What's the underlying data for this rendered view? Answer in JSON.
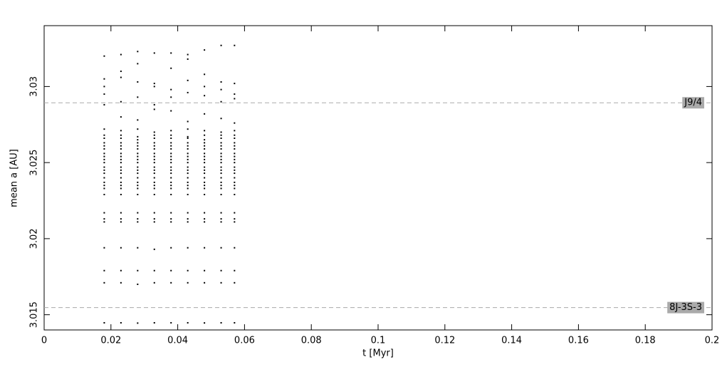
{
  "chart_data": {
    "type": "scatter",
    "x_label": "t [Myr]",
    "y_label": "mean a [AU]",
    "xlim": [
      0,
      0.2
    ],
    "xticks": [
      0,
      0.02,
      0.04,
      0.06,
      0.08,
      0.1,
      0.12,
      0.14,
      0.16,
      0.18,
      0.2
    ],
    "ylim": [
      3.014,
      3.034
    ],
    "yticks": [
      3.015,
      3.02,
      3.025,
      3.03
    ],
    "color": "#000000",
    "reference_lines": [
      {
        "value": 3.02893,
        "label": "J9/4"
      },
      {
        "value": 3.01547,
        "label": "8J-3S-3"
      }
    ],
    "x": [
      0.018,
      0.023,
      0.028,
      0.033,
      0.038,
      0.043,
      0.048,
      0.053,
      0.057
    ],
    "series": [
      {
        "values": [
          3.032,
          3.0321,
          3.0323,
          3.0322,
          3.0322,
          3.0321,
          3.0324,
          3.0327,
          3.0327
        ]
      },
      {
        "values": [
          3.0305,
          3.0306,
          3.0303,
          3.0302,
          3.0298,
          3.0304,
          3.03,
          3.0303,
          3.0302
        ]
      },
      {
        "values": [
          3.03,
          3.031,
          3.0315,
          3.03,
          3.0312,
          3.0318,
          3.0308,
          3.0298,
          3.0295
        ]
      },
      {
        "values": [
          3.0295,
          3.029,
          3.0293,
          3.0285,
          3.0293,
          3.0296,
          3.0294,
          3.029,
          3.0292
        ]
      },
      {
        "values": [
          3.0288,
          3.028,
          3.0278,
          3.0288,
          3.0284,
          3.0277,
          3.0282,
          3.0279,
          3.0276
        ]
      },
      {
        "values": [
          3.0272,
          3.0271,
          3.0272,
          3.027,
          3.0271,
          3.0272,
          3.0271,
          3.027,
          3.0271
        ]
      },
      {
        "values": [
          3.0268,
          3.0268,
          3.0267,
          3.0268,
          3.0268,
          3.0267,
          3.0268,
          3.0268,
          3.0268
        ]
      },
      {
        "values": [
          3.0266,
          3.0266,
          3.0265,
          3.0266,
          3.0266,
          3.0266,
          3.0265,
          3.0266,
          3.0266
        ]
      },
      {
        "values": [
          3.0263,
          3.0263,
          3.0263,
          3.0263,
          3.0263,
          3.0263,
          3.0263,
          3.0263,
          3.0263
        ]
      },
      {
        "values": [
          3.0261,
          3.0261,
          3.0261,
          3.0261,
          3.0261,
          3.0261,
          3.0261,
          3.0261,
          3.0261
        ]
      },
      {
        "values": [
          3.0259,
          3.0259,
          3.0259,
          3.0259,
          3.0259,
          3.0259,
          3.0259,
          3.0259,
          3.0259
        ]
      },
      {
        "values": [
          3.0256,
          3.0256,
          3.0256,
          3.0256,
          3.0256,
          3.0256,
          3.0256,
          3.0256,
          3.0256
        ]
      },
      {
        "values": [
          3.0254,
          3.0254,
          3.0254,
          3.0254,
          3.0254,
          3.0254,
          3.0254,
          3.0254,
          3.0254
        ]
      },
      {
        "values": [
          3.0252,
          3.0252,
          3.0252,
          3.0252,
          3.0252,
          3.0252,
          3.0252,
          3.0252,
          3.0252
        ]
      },
      {
        "values": [
          3.025,
          3.025,
          3.025,
          3.025,
          3.025,
          3.025,
          3.025,
          3.025,
          3.025
        ]
      },
      {
        "values": [
          3.0247,
          3.0247,
          3.0247,
          3.0247,
          3.0247,
          3.0247,
          3.0247,
          3.0247,
          3.0247
        ]
      },
      {
        "values": [
          3.0245,
          3.0245,
          3.0245,
          3.0245,
          3.0245,
          3.0245,
          3.0245,
          3.0245,
          3.0245
        ]
      },
      {
        "values": [
          3.0243,
          3.0243,
          3.0243,
          3.0243,
          3.0243,
          3.0243,
          3.0243,
          3.0243,
          3.0243
        ]
      },
      {
        "values": [
          3.024,
          3.024,
          3.024,
          3.024,
          3.024,
          3.024,
          3.024,
          3.024,
          3.024
        ]
      },
      {
        "values": [
          3.0237,
          3.0237,
          3.0237,
          3.0237,
          3.0237,
          3.0237,
          3.0237,
          3.0237,
          3.0237
        ]
      },
      {
        "values": [
          3.0235,
          3.0235,
          3.0235,
          3.0235,
          3.0235,
          3.0235,
          3.0235,
          3.0235,
          3.0235
        ]
      },
      {
        "values": [
          3.0233,
          3.0233,
          3.0233,
          3.0233,
          3.0233,
          3.0233,
          3.0233,
          3.0233,
          3.0233
        ]
      },
      {
        "values": [
          3.0229,
          3.0229,
          3.0229,
          3.0229,
          3.0229,
          3.0229,
          3.0229,
          3.0229,
          3.0229
        ]
      },
      {
        "values": [
          3.0217,
          3.0217,
          3.0217,
          3.0217,
          3.0217,
          3.0217,
          3.0217,
          3.0217,
          3.0217
        ]
      },
      {
        "values": [
          3.0213,
          3.0213,
          3.0213,
          3.0213,
          3.0213,
          3.0213,
          3.0213,
          3.0213,
          3.0213
        ]
      },
      {
        "values": [
          3.0211,
          3.0211,
          3.0211,
          3.0211,
          3.0211,
          3.0211,
          3.0211,
          3.0211,
          3.0211
        ]
      },
      {
        "values": [
          3.0194,
          3.0194,
          3.0194,
          3.0193,
          3.0194,
          3.0194,
          3.0194,
          3.0194,
          3.0194
        ]
      },
      {
        "values": [
          3.0179,
          3.0179,
          3.0179,
          3.0179,
          3.0179,
          3.0179,
          3.0179,
          3.0179,
          3.0179
        ]
      },
      {
        "values": [
          3.0171,
          3.0171,
          3.017,
          3.0171,
          3.0171,
          3.0171,
          3.0171,
          3.0171,
          3.0171
        ]
      },
      {
        "values": [
          3.01447,
          3.01447,
          3.01445,
          3.01447,
          3.01447,
          3.01447,
          3.01446,
          3.01447,
          3.01447
        ]
      }
    ]
  }
}
